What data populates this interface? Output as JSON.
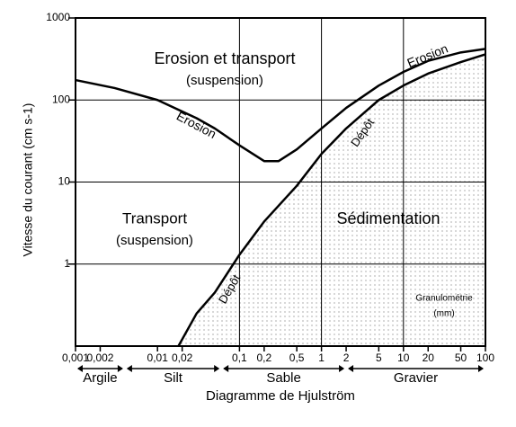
{
  "chart_data": {
    "type": "line",
    "xlabel": "Diagramme de Hjulström",
    "ylabel": "Vitesse du courant (cm s-1)",
    "xscale": "log",
    "yscale": "log",
    "grid": true,
    "xlim": [
      0.001,
      100
    ],
    "ylim": [
      0.1,
      1000
    ],
    "yticks": [
      1,
      10,
      100,
      1000
    ],
    "xticks": [
      {
        "value": 0.001,
        "label": "0,001"
      },
      {
        "value": 0.002,
        "label": "0,002"
      },
      {
        "value": 0.01,
        "label": "0,01"
      },
      {
        "value": 0.02,
        "label": "0,02"
      },
      {
        "value": 0.1,
        "label": "0,1"
      },
      {
        "value": 0.2,
        "label": "0,2"
      },
      {
        "value": 0.5,
        "label": "0,5"
      },
      1,
      2,
      5,
      10,
      20,
      50,
      100
    ],
    "series": [
      {
        "name": "Erosion",
        "color": "#000000",
        "x": [
          0.001,
          0.003,
          0.01,
          0.03,
          0.05,
          0.1,
          0.2,
          0.3,
          0.5,
          1,
          2,
          5,
          10,
          20,
          50,
          100
        ],
        "values": [
          175,
          140,
          100,
          60,
          45,
          28,
          18,
          18,
          25,
          45,
          80,
          150,
          220,
          300,
          380,
          420
        ]
      },
      {
        "name": "Dépôt",
        "color": "#000000",
        "x": [
          0.018,
          0.03,
          0.05,
          0.1,
          0.2,
          0.5,
          1,
          2,
          5,
          10,
          20,
          50,
          100
        ],
        "values": [
          0.1,
          0.25,
          0.45,
          1.3,
          3.3,
          9,
          22,
          45,
          100,
          150,
          210,
          290,
          360
        ]
      }
    ],
    "size_classes": [
      {
        "label": "Argile",
        "range": [
          0.001,
          0.004
        ]
      },
      {
        "label": "Silt",
        "range": [
          0.004,
          0.06
        ]
      },
      {
        "label": "Sable",
        "range": [
          0.06,
          2
        ]
      },
      {
        "label": "Gravier",
        "range": [
          2,
          100
        ]
      }
    ],
    "annotations": [
      "Erosion et transport",
      "(suspension)",
      "Transport",
      "(suspension)",
      "Sédimentation",
      "Granulométrie",
      "(mm)",
      "Erosion",
      "Erosion",
      "Dépôt",
      "Dépôt"
    ]
  }
}
